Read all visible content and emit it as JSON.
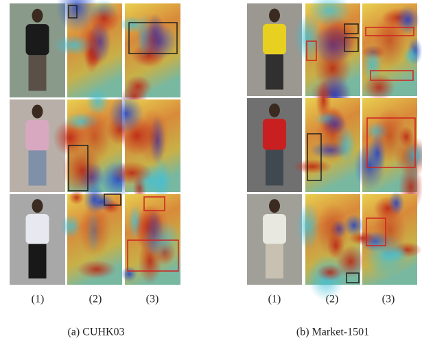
{
  "panels": [
    {
      "column_labels": [
        "(1)",
        "(2)",
        "(3)"
      ],
      "caption": "(a) CUHK03"
    },
    {
      "column_labels": [
        "(1)",
        "(2)",
        "(3)"
      ],
      "caption": "(b) Market-1501"
    }
  ]
}
